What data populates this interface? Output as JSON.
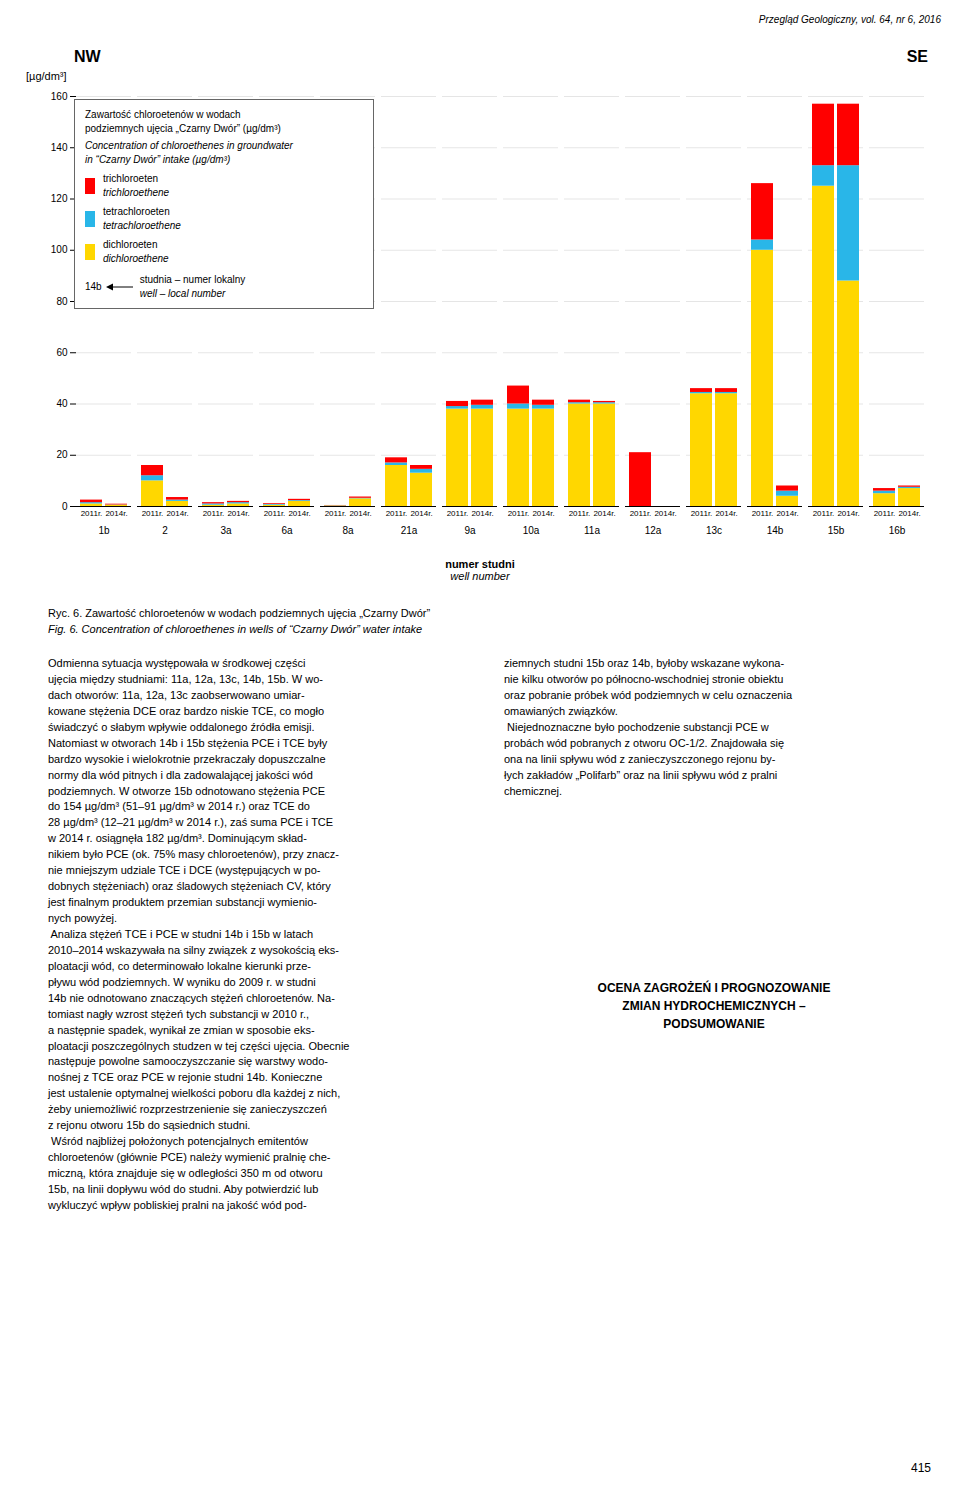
{
  "chart_data": {
    "type": "bar",
    "stacked": true,
    "grid": true,
    "legend": "upper left",
    "title": "Zawartość chloroetenów w wodach\npodziemnych ujęcia „Czarny Dwór” (µg/dm³)",
    "subtitle": "Concentration of chloroethenes in groundwater\nin “Czarny Dwór” intake (µg/dm³)",
    "xlabel": "numer studni",
    "xlabel_en": "well number",
    "ylabel": "[µg/dm³]",
    "ylim": [
      0,
      160
    ],
    "yticks": [
      0,
      20,
      40,
      60,
      80,
      100,
      120,
      140,
      160
    ],
    "categories": [
      "1b",
      "2",
      "3a",
      "6a",
      "8a",
      "21a",
      "9a",
      "10a",
      "11a",
      "12a",
      "13c",
      "14b",
      "15b",
      "16b"
    ],
    "groups": [
      "2011r.",
      "2014r."
    ],
    "series": [
      {
        "name": "dichloroeten",
        "name_en": "dichloroethene",
        "color": "#FFD700",
        "values": [
          [
            1.0,
            0.5
          ],
          [
            10,
            2
          ],
          [
            0.5,
            1
          ],
          [
            0.5,
            2
          ],
          [
            0.2,
            3
          ],
          [
            16,
            13
          ],
          [
            38,
            38
          ],
          [
            38,
            38
          ],
          [
            40,
            40
          ],
          [
            0,
            0
          ],
          [
            44,
            44
          ],
          [
            100,
            4
          ],
          [
            125,
            88
          ],
          [
            5,
            7
          ]
        ]
      },
      {
        "name": "tetrachloroeten",
        "name_en": "tetrachloroethene",
        "color": "#29B6E8",
        "values": [
          [
            0.5,
            0.1
          ],
          [
            2,
            0.5
          ],
          [
            0.5,
            0.5
          ],
          [
            0.3,
            0.3
          ],
          [
            0.1,
            0.2
          ],
          [
            1,
            1.5
          ],
          [
            1,
            1.5
          ],
          [
            2,
            1.5
          ],
          [
            0.5,
            0.5
          ],
          [
            0,
            0
          ],
          [
            0.5,
            0.5
          ],
          [
            4,
            2
          ],
          [
            8,
            45
          ],
          [
            1,
            0.5
          ]
        ]
      },
      {
        "name": "trichloroeten",
        "name_en": "trichloroethene",
        "color": "#FF0000",
        "values": [
          [
            1.0,
            0.3
          ],
          [
            4,
            1
          ],
          [
            0.5,
            0.5
          ],
          [
            0.3,
            0.5
          ],
          [
            0.1,
            0.5
          ],
          [
            2,
            1.5
          ],
          [
            2,
            2
          ],
          [
            7,
            2
          ],
          [
            1,
            0.5
          ],
          [
            21,
            0
          ],
          [
            1.5,
            1.5
          ],
          [
            22,
            2
          ],
          [
            24,
            24
          ],
          [
            1,
            0.5
          ]
        ]
      }
    ],
    "annotations": {
      "nw": "NW",
      "se": "SE",
      "legend_example": "14b",
      "legend_example_pl": "studnia – numer lokalny",
      "legend_example_en": "well – local number",
      "header": "Przegląd Geologiczny, vol. 64, nr 6, 2016",
      "caption": "Ryc. 6. Zawartość chloroetenów w wodach podziemnych ujęcia „Czarny Dwór”",
      "caption_en": "Fig. 6. Concentration of chloroethenes in wells of “Czarny Dwór” water intake",
      "paragraph_left": "Odmienna sytuacja występowała w środkowej części\nujęcia między studniami: 11a, 12a, 13c, 14b, 15b. W wo-\ndach otworów: 11a, 12a, 13c zaobserwowano umiar-\nkowane stężenia DCE oraz bardzo niskie TCE, co mogło\nświadczyć o słabym wpływie oddalonego źródła emisji.\nNatomiast w otworach 14b i 15b stężenia PCE i TCE były\nbardzo wysokie i wielokrotnie przekraczały dopuszczalne\nnormy dla wód pitnych i dla zadowalającej jakości wód\npodziemnych. W otworze 15b odnotowano stężenia PCE\ndo 154 µg/dm³ (51–91 µg/dm³ w 2014 r.) oraz TCE do\n28 µg/dm³ (12–21 µg/dm³ w 2014 r.), zaś suma PCE i TCE\nw 2014 r. osiągnęła 182 µg/dm³. Dominującym skład-\nnikiem było PCE (ok. 75% masy chloroetenów), przy znacz-\nnie mniejszym udziale TCE i DCE (występujących w po-\ndobnych stężeniach) oraz śladowych stężeniach CV, który\njest finalnym produktem przemian substancji wymienio-\nnych powyżej.\n Analiza stężeń TCE i PCE w studni 14b i 15b w latach\n2010–2014 wskazywała na silny związek z wysokością eks-\nploatacji wód, co determinowało lokalne kierunki prze-\npływu wód podziemnych. W wyniku do 2009 r. w studni\n14b nie odnotowano znaczących stężeń chloroetenów. Na-\ntomiast nagły wzrost stężeń tych substancji w 2010 r.,\na następnie spadek, wynikał ze zmian w sposobie eks-\nploatacji poszczególnych studzen w tej części ujęcia. Obecnie\nnastępuje powolne samooczyszczanie się warstwy wodo-\nnośnej z TCE oraz PCE w rejonie studni 14b. Konieczne\njest ustalenie optymalnej wielkości poboru dla każdej z nich,\nżeby uniemożliwić rozprzestrzenienie się zanieczyszczeń\nz rejonu otworu 15b do sąsiednich studni.\n Wśród najbliżej położonych potencjalnych emitentów\nchloroetenów (głównie PCE) należy wymienić pralnię che-\nmiczną, która znajduje się w odległości 350 m od otworu\n15b, na linii dopływu wód do studni. Aby potwierdzić lub\nwykluczyć wpływ pobliskiej pralni na jakość wód pod-",
      "paragraph_right": "ziemnych studni 15b oraz 14b, byłoby wskazane wykona-\nnie kilku otworów po północno-wschodniej stronie obiektu\noraz pobranie próbek wód podziemnych w celu oznaczenia\nomawianých związków.\n Niejednoznaczne było pochodzenie substancji PCE w\nprobách wód pobranych z otworu OC-1/2. Znajdowała się\nona na linii spływu wód z zanieczyszczonego rejonu by-\nłych zakładów „Polifarb” oraz na linii spływu wód z pralni\nchemicznej.",
      "section_header": "OCENA ZAGROŻEŃ I PROGNOZOWANIE\nZMIAN HYDROCHEMICZNYCH –\nPODSUMOWANIE",
      "page_number": "415"
    }
  }
}
